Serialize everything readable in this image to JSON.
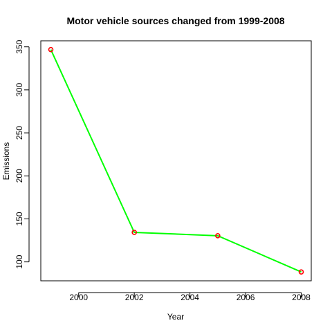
{
  "chart_data": {
    "type": "line",
    "title": "Motor vehicle sources changed from 1999-2008",
    "xlabel": "Year",
    "ylabel": "Emissions",
    "x": [
      1999,
      2002,
      2005,
      2008
    ],
    "series": [
      {
        "values": [
          346.8,
          134.3,
          130.4,
          88.3
        ]
      }
    ],
    "xlim": [
      1998.64,
      2008.36
    ],
    "ylim": [
      78.0,
      357.0
    ],
    "xticks": [
      2000,
      2002,
      2004,
      2006,
      2008
    ],
    "yticks": [
      100,
      150,
      200,
      250,
      300,
      350
    ],
    "xtick_labels": [
      "2000",
      "2002",
      "2004",
      "2006",
      "2008"
    ],
    "ytick_labels": [
      "100",
      "150",
      "200",
      "250",
      "300",
      "350"
    ],
    "grid": false,
    "colors": {
      "line": "#00ff00",
      "marker": "#ff0000"
    }
  }
}
